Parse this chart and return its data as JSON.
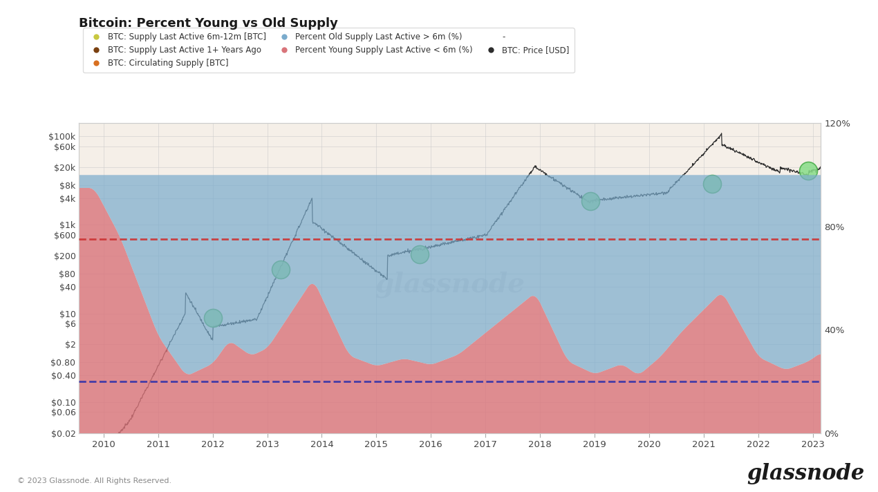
{
  "title": "Bitcoin: Percent Young vs Old Supply",
  "background_color": "#ffffff",
  "plot_bg_color": "#f5efe8",
  "x_tick_labels": [
    "2010",
    "2011",
    "2012",
    "2013",
    "2014",
    "2015",
    "2016",
    "2017",
    "2018",
    "2019",
    "2020",
    "2021",
    "2022",
    "2023"
  ],
  "left_ytick_vals": [
    0.02,
    0.06,
    0.1,
    0.4,
    0.8,
    2,
    6,
    10,
    40,
    80,
    200,
    600,
    1000,
    4000,
    8000,
    20000,
    60000,
    100000
  ],
  "left_ytick_labels": [
    "$0.02",
    "$0.06",
    "$0.10",
    "$0.40",
    "$0.80",
    "$2",
    "$6",
    "$10",
    "$40",
    "$80",
    "$200",
    "$600",
    "$1k",
    "$4k",
    "$8k",
    "$20k",
    "$60k",
    "$100k"
  ],
  "right_ytick_vals": [
    0,
    40,
    80,
    120
  ],
  "right_ytick_labels": [
    "0%",
    "40%",
    "80%",
    "120%"
  ],
  "red_dashed_pct": 75,
  "blue_dashed_pct": 20,
  "fill_pink_color": "#d9747a",
  "fill_blue_color": "#7aabcc",
  "price_line_color": "#2d2d2d",
  "red_dashed_color": "#cc3333",
  "blue_dashed_color": "#3333aa",
  "legend_row1": [
    {
      "label": "BTC: Supply Last Active 6m-12m [BTC]",
      "color": "#c8c840"
    },
    {
      "label": "BTC: Supply Last Active 1+ Years Ago",
      "color": "#7a4010"
    },
    {
      "label": "BTC: Circulating Supply [BTC]",
      "color": "#d87020"
    }
  ],
  "legend_row2": [
    {
      "label": "Percent Old Supply Last Active > 6m (%)",
      "color": "#7aabcc"
    },
    {
      "label": "Percent Young Supply Last Active < 6m (%)",
      "color": "#d9747a"
    },
    {
      "label": "-",
      "color": "#888888"
    }
  ],
  "legend_row3": [
    {
      "label": "BTC: Price [USD]",
      "color": "#2d2d2d"
    }
  ],
  "green_circles": [
    {
      "t": 2012.0,
      "price": 8
    },
    {
      "t": 2013.25,
      "price": 100
    },
    {
      "t": 2015.8,
      "price": 215
    },
    {
      "t": 2018.92,
      "price": 3500
    },
    {
      "t": 2021.15,
      "price": 8500
    },
    {
      "t": 2022.92,
      "price": 17000
    }
  ],
  "copyright": "© 2023 Glassnode. All Rights Reserved.",
  "watermark": "glassnode"
}
